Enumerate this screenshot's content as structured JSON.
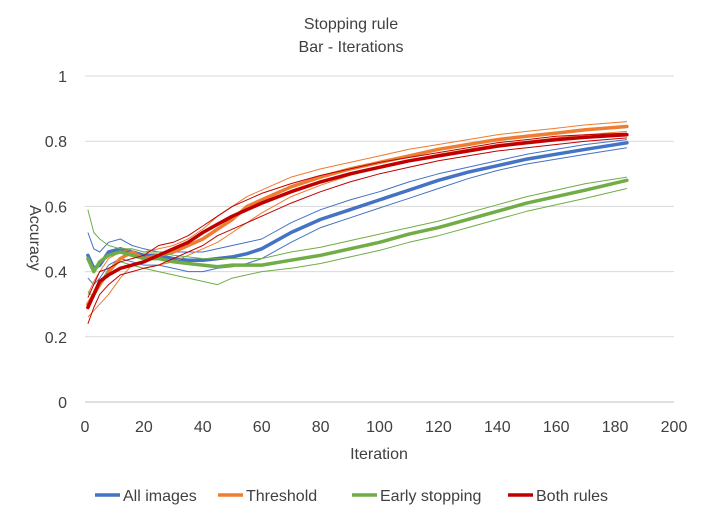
{
  "chart_data": {
    "type": "line",
    "title": "Stopping rule",
    "subtitle": "Bar - Iterations",
    "xlabel": "Iteration",
    "ylabel": "Accuracy",
    "xlim": [
      0,
      200
    ],
    "ylim": [
      0,
      1
    ],
    "x_ticks": [
      0,
      20,
      40,
      60,
      80,
      100,
      120,
      140,
      160,
      180,
      200
    ],
    "y_ticks": [
      0,
      0.2,
      0.4,
      0.6,
      0.8,
      1
    ],
    "y_tick_labels": [
      "0",
      "0.2",
      "0.4",
      "0.6",
      "0.8",
      "1"
    ],
    "grid": "horizontal",
    "legend_position": "bottom",
    "series": [
      {
        "name": "All images",
        "color": "#4472C4",
        "x": [
          1,
          3,
          5,
          8,
          12,
          16,
          20,
          25,
          30,
          35,
          40,
          45,
          50,
          55,
          60,
          70,
          80,
          90,
          100,
          110,
          120,
          130,
          140,
          150,
          160,
          170,
          184
        ],
        "values": [
          0.45,
          0.41,
          0.42,
          0.46,
          0.47,
          0.46,
          0.45,
          0.45,
          0.44,
          0.435,
          0.435,
          0.44,
          0.445,
          0.455,
          0.47,
          0.52,
          0.56,
          0.59,
          0.62,
          0.65,
          0.68,
          0.705,
          0.725,
          0.745,
          0.76,
          0.775,
          0.795
        ],
        "upper": [
          0.52,
          0.47,
          0.46,
          0.49,
          0.5,
          0.48,
          0.47,
          0.46,
          0.46,
          0.46,
          0.46,
          0.47,
          0.48,
          0.49,
          0.5,
          0.55,
          0.59,
          0.62,
          0.645,
          0.675,
          0.7,
          0.72,
          0.74,
          0.76,
          0.775,
          0.79,
          0.805
        ],
        "lower": [
          0.38,
          0.36,
          0.38,
          0.42,
          0.44,
          0.43,
          0.42,
          0.42,
          0.41,
          0.4,
          0.4,
          0.41,
          0.415,
          0.425,
          0.44,
          0.49,
          0.535,
          0.565,
          0.595,
          0.625,
          0.655,
          0.685,
          0.71,
          0.73,
          0.745,
          0.76,
          0.78
        ]
      },
      {
        "name": "Threshold",
        "color": "#ED7D31",
        "x": [
          1,
          3,
          5,
          8,
          12,
          16,
          20,
          25,
          30,
          35,
          40,
          45,
          50,
          55,
          60,
          70,
          80,
          90,
          100,
          110,
          120,
          130,
          140,
          150,
          160,
          170,
          184
        ],
        "values": [
          0.3,
          0.33,
          0.36,
          0.4,
          0.44,
          0.46,
          0.44,
          0.45,
          0.46,
          0.48,
          0.5,
          0.53,
          0.56,
          0.6,
          0.62,
          0.66,
          0.69,
          0.715,
          0.735,
          0.755,
          0.775,
          0.79,
          0.805,
          0.815,
          0.825,
          0.835,
          0.845
        ],
        "upper": [
          0.33,
          0.37,
          0.4,
          0.44,
          0.46,
          0.47,
          0.46,
          0.47,
          0.48,
          0.5,
          0.53,
          0.57,
          0.6,
          0.63,
          0.65,
          0.69,
          0.715,
          0.735,
          0.755,
          0.775,
          0.79,
          0.805,
          0.82,
          0.83,
          0.84,
          0.85,
          0.86
        ],
        "lower": [
          0.26,
          0.28,
          0.3,
          0.33,
          0.38,
          0.42,
          0.41,
          0.42,
          0.43,
          0.45,
          0.47,
          0.49,
          0.52,
          0.55,
          0.58,
          0.63,
          0.665,
          0.695,
          0.72,
          0.74,
          0.76,
          0.775,
          0.79,
          0.8,
          0.81,
          0.82,
          0.83
        ]
      },
      {
        "name": "Early stopping",
        "color": "#70AD47",
        "x": [
          1,
          3,
          5,
          8,
          12,
          16,
          20,
          25,
          30,
          35,
          40,
          45,
          50,
          55,
          60,
          70,
          80,
          90,
          100,
          110,
          120,
          130,
          140,
          150,
          160,
          170,
          184
        ],
        "values": [
          0.44,
          0.4,
          0.43,
          0.45,
          0.46,
          0.45,
          0.44,
          0.44,
          0.43,
          0.425,
          0.42,
          0.415,
          0.42,
          0.42,
          0.42,
          0.435,
          0.45,
          0.47,
          0.49,
          0.515,
          0.535,
          0.56,
          0.585,
          0.61,
          0.63,
          0.65,
          0.68
        ],
        "upper": [
          0.59,
          0.52,
          0.5,
          0.48,
          0.47,
          0.47,
          0.46,
          0.46,
          0.45,
          0.445,
          0.44,
          0.44,
          0.44,
          0.44,
          0.44,
          0.46,
          0.475,
          0.495,
          0.515,
          0.535,
          0.555,
          0.58,
          0.605,
          0.63,
          0.65,
          0.67,
          0.69
        ],
        "lower": [
          0.34,
          0.32,
          0.36,
          0.41,
          0.43,
          0.42,
          0.41,
          0.4,
          0.39,
          0.38,
          0.37,
          0.36,
          0.38,
          0.39,
          0.4,
          0.41,
          0.425,
          0.445,
          0.465,
          0.49,
          0.51,
          0.535,
          0.56,
          0.585,
          0.605,
          0.625,
          0.655
        ]
      },
      {
        "name": "Both rules",
        "color": "#C00000",
        "x": [
          1,
          3,
          5,
          8,
          12,
          16,
          20,
          25,
          30,
          35,
          40,
          45,
          50,
          55,
          60,
          70,
          80,
          90,
          100,
          110,
          120,
          130,
          140,
          150,
          160,
          170,
          184
        ],
        "values": [
          0.29,
          0.33,
          0.37,
          0.39,
          0.41,
          0.42,
          0.43,
          0.45,
          0.47,
          0.49,
          0.52,
          0.545,
          0.57,
          0.59,
          0.61,
          0.645,
          0.675,
          0.7,
          0.72,
          0.74,
          0.755,
          0.77,
          0.785,
          0.795,
          0.805,
          0.812,
          0.82
        ],
        "upper": [
          0.32,
          0.36,
          0.4,
          0.41,
          0.43,
          0.44,
          0.45,
          0.48,
          0.49,
          0.51,
          0.54,
          0.57,
          0.6,
          0.62,
          0.64,
          0.67,
          0.695,
          0.715,
          0.735,
          0.75,
          0.765,
          0.78,
          0.795,
          0.805,
          0.815,
          0.82,
          0.825
        ],
        "lower": [
          0.24,
          0.29,
          0.33,
          0.36,
          0.39,
          0.4,
          0.41,
          0.42,
          0.44,
          0.46,
          0.48,
          0.51,
          0.53,
          0.55,
          0.57,
          0.61,
          0.645,
          0.675,
          0.7,
          0.72,
          0.74,
          0.755,
          0.77,
          0.78,
          0.79,
          0.8,
          0.81
        ]
      }
    ]
  }
}
